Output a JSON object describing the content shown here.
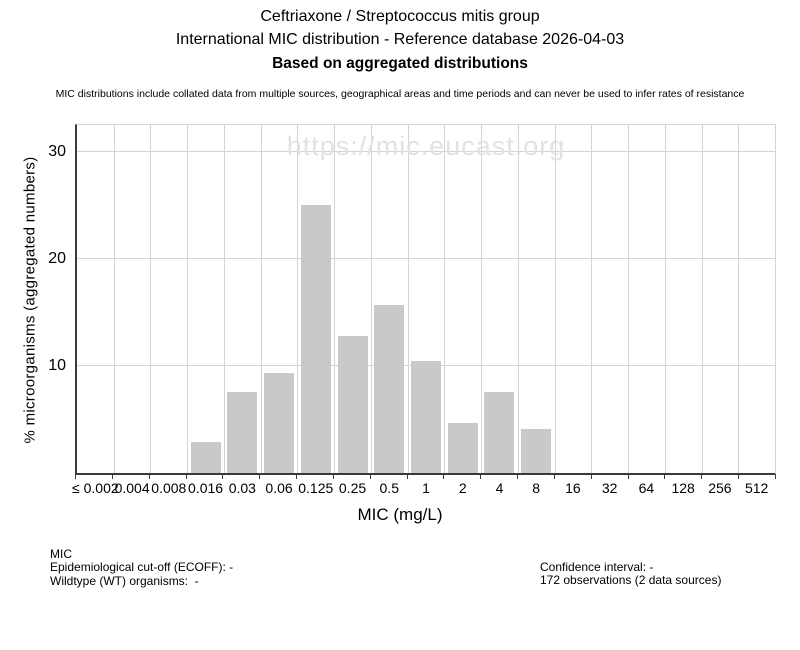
{
  "header": {
    "title": "Ceftriaxone / Streptococcus mitis group",
    "subtitle": "International MIC distribution - Reference database 2026-04-03",
    "emphasis": "Based on aggregated distributions",
    "disclaimer": "MIC distributions include collated data from multiple sources, geographical areas and time periods and can never be used to infer rates of resistance"
  },
  "chart_data": {
    "type": "bar",
    "title": "Ceftriaxone / Streptococcus mitis group",
    "xlabel": "MIC (mg/L)",
    "ylabel": "% microorganisms (aggregated numbers)",
    "categories": [
      "≤ 0.002",
      "0.004",
      "0.008",
      "0.016",
      "0.03",
      "0.06",
      "0.125",
      "0.25",
      "0.5",
      "1",
      "2",
      "4",
      "8",
      "16",
      "32",
      "64",
      "128",
      "256",
      "512"
    ],
    "values": [
      0,
      0,
      0,
      2.91,
      7.56,
      9.3,
      25.0,
      12.79,
      15.7,
      10.47,
      4.65,
      7.56,
      4.07,
      0,
      0,
      0,
      0,
      0,
      0
    ],
    "ylim": [
      0,
      32.5
    ],
    "yticks": [
      10,
      20,
      30
    ],
    "grid": true,
    "legend_position": "none",
    "bar_color": "#c9c9c9",
    "grid_color": "#d4d4d4",
    "axis_color": "#3a3a3a",
    "watermark": "https://mic.eucast.org",
    "watermark_color": "#e2e2e2"
  },
  "footer": {
    "left_lines": [
      "MIC",
      "Epidemiological cut-off (ECOFF): -",
      "Wildtype (WT) organisms:  -"
    ],
    "right_lines": [
      "Confidence interval: -",
      "172 observations (2 data sources)"
    ]
  }
}
